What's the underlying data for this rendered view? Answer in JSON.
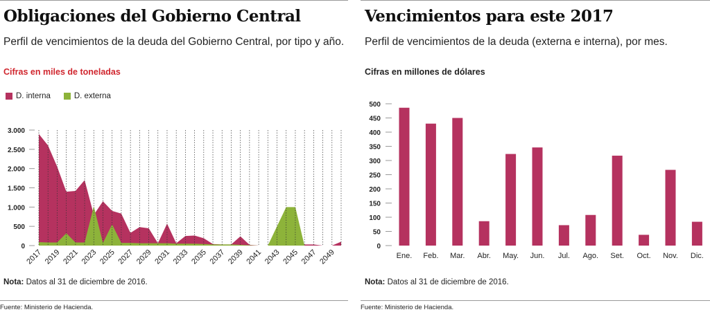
{
  "left": {
    "title": "Obligaciones del Gobierno Central",
    "subtitle": "Perfil de vencimientos  de la deuda del Gobierno Central, por tipo y año.",
    "unit": "Cifras en miles de toneladas",
    "note_label": "Nota:",
    "note_text": " Datos al 31 de diciembre de 2016.",
    "source": "Fuente: Ministerio de Hacienda."
  },
  "right": {
    "title": "Vencimientos para este 2017",
    "subtitle": "Perfil de vencimientos de la deuda (externa e interna), por mes.",
    "unit": "Cifras en millones de dólares",
    "note_label": "Nota:",
    "note_text": " Datos al 31 de diciembre de 2016.",
    "source": "Fuente: Ministerio de Hacienda."
  },
  "colors": {
    "interna": "#b5325f",
    "externa": "#8db33a",
    "title_red": "#d0262e"
  },
  "chart_data": [
    {
      "type": "area",
      "title": "Obligaciones del Gobierno Central",
      "ylim": [
        0,
        3000
      ],
      "yticks": [
        0,
        500,
        1000,
        1500,
        2000,
        2500,
        3000
      ],
      "ytick_labels": [
        "0",
        "500",
        "1.000",
        "1.500",
        "2.000",
        "2.500",
        "3.000"
      ],
      "x": [
        2017,
        2018,
        2019,
        2020,
        2021,
        2022,
        2023,
        2024,
        2025,
        2026,
        2027,
        2028,
        2029,
        2030,
        2031,
        2032,
        2033,
        2034,
        2035,
        2036,
        2037,
        2038,
        2039,
        2040,
        2041,
        2042,
        2043,
        2044,
        2045,
        2046,
        2047,
        2048,
        2049,
        2050
      ],
      "xtick_labels": [
        "2017",
        "2019",
        "2021",
        "2023",
        "2025",
        "2027",
        "2029",
        "2031",
        "2033",
        "2035",
        "2037",
        "2039",
        "2041",
        "2043",
        "2045",
        "2047",
        "2049"
      ],
      "legend": "top-left",
      "series": [
        {
          "name": "D. interna",
          "values": [
            2900,
            2600,
            2050,
            1400,
            1420,
            1700,
            800,
            1150,
            900,
            830,
            330,
            480,
            450,
            60,
            570,
            60,
            250,
            260,
            190,
            40,
            30,
            30,
            240,
            20,
            0,
            0,
            0,
            0,
            0,
            30,
            30,
            0,
            0,
            100
          ]
        },
        {
          "name": "D. externa",
          "values": [
            90,
            80,
            80,
            320,
            80,
            80,
            1020,
            70,
            550,
            70,
            70,
            60,
            60,
            60,
            60,
            50,
            50,
            50,
            40,
            30,
            30,
            30,
            20,
            10,
            0,
            0,
            500,
            1000,
            1000,
            0,
            0,
            0,
            0,
            0
          ]
        }
      ]
    },
    {
      "type": "bar",
      "title": "Vencimientos para este 2017",
      "ylim": [
        0,
        500
      ],
      "yticks": [
        0,
        50,
        100,
        150,
        200,
        250,
        300,
        350,
        400,
        450,
        500
      ],
      "categories": [
        "Ene.",
        "Feb.",
        "Mar.",
        "Abr.",
        "May.",
        "Jun.",
        "Jul.",
        "Ago.",
        "Set.",
        "Oct.",
        "Nov.",
        "Dic."
      ],
      "values": [
        486,
        430,
        450,
        86,
        323,
        346,
        72,
        108,
        317,
        38,
        267,
        84
      ]
    }
  ]
}
